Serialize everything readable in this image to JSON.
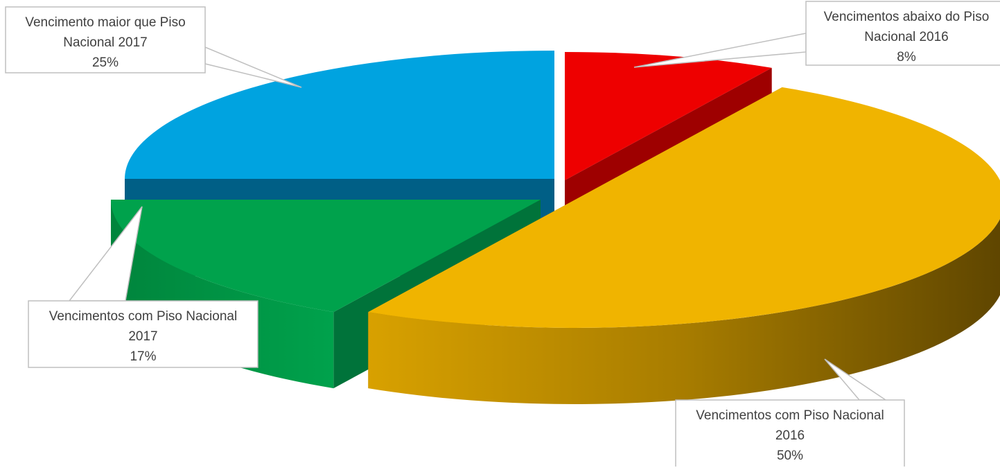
{
  "chart_data": {
    "type": "pie",
    "style": "3d-exploded",
    "title": "",
    "categories": [
      "Vencimentos abaixo do Piso Nacional 2016",
      "Vencimentos com Piso Nacional 2016",
      "Vencimentos com Piso Nacional 2017",
      "Vencimento maior que Piso Nacional 2017"
    ],
    "values": [
      8,
      50,
      17,
      25
    ],
    "value_unit": "%",
    "colors": [
      "#ee0000",
      "#f0b400",
      "#00a24c",
      "#00a3e0"
    ],
    "labels": [
      {
        "lines": [
          "Vencimentos abaixo do Piso",
          "Nacional 2016"
        ],
        "percent": "8%"
      },
      {
        "lines": [
          "Vencimentos com Piso Nacional",
          "2016"
        ],
        "percent": "50%"
      },
      {
        "lines": [
          "Vencimentos com Piso Nacional",
          "2017"
        ],
        "percent": "17%"
      },
      {
        "lines": [
          "Vencimento maior que Piso",
          "Nacional 2017"
        ],
        "percent": "25%"
      }
    ],
    "legend": "none",
    "data_labels": "callouts"
  }
}
